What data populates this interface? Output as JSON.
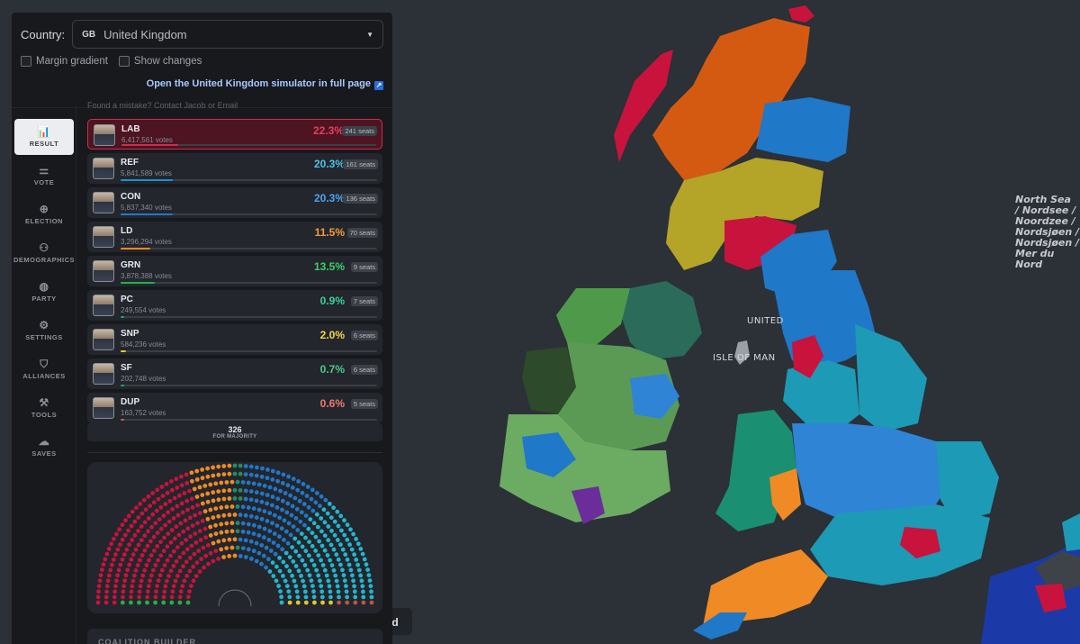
{
  "controls": {
    "country_label": "Country:",
    "country_code": "GB",
    "country_name": "United Kingdom",
    "margin_gradient": "Margin gradient",
    "show_changes": "Show changes",
    "fullpage_link": "Open the United Kingdom simulator in full page"
  },
  "nav": [
    {
      "label": "RESULT",
      "icon": "bar-chart-icon",
      "glyph": "📊",
      "active": true
    },
    {
      "label": "VOTE",
      "icon": "sliders-icon",
      "glyph": "⚌"
    },
    {
      "label": "ELECTION",
      "icon": "globe-icon",
      "glyph": "⊕"
    },
    {
      "label": "DEMOGRAPHICS",
      "icon": "people-icon",
      "glyph": "⚇"
    },
    {
      "label": "PARTY",
      "icon": "palette-icon",
      "glyph": "◍"
    },
    {
      "label": "SETTINGS",
      "icon": "gear-icon",
      "glyph": "⚙"
    },
    {
      "label": "ALLIANCES",
      "icon": "handshake-icon",
      "glyph": "⛉"
    },
    {
      "label": "TOOLS",
      "icon": "wrench-icon",
      "glyph": "⚒"
    },
    {
      "label": "SAVES",
      "icon": "cloud-icon",
      "glyph": "☁"
    }
  ],
  "parties": [
    {
      "abbr": "LAB",
      "votes": "6,417,561 votes",
      "pct": "22.3%",
      "seats": "241 seats",
      "color": "#e4405e",
      "bar": "#c9304a",
      "share": 0.223
    },
    {
      "abbr": "REF",
      "votes": "5,841,589 votes",
      "pct": "20.3%",
      "seats": "161 seats",
      "color": "#4cc3e3",
      "bar": "#1d8fd6",
      "share": 0.203
    },
    {
      "abbr": "CON",
      "votes": "5,837,340 votes",
      "pct": "20.3%",
      "seats": "136 seats",
      "color": "#4aa6ee",
      "bar": "#1f78d1",
      "share": 0.203
    },
    {
      "abbr": "LD",
      "votes": "3,296,294 votes",
      "pct": "11.5%",
      "seats": "70 seats",
      "color": "#f59a3c",
      "bar": "#f08a24",
      "share": 0.115
    },
    {
      "abbr": "GRN",
      "votes": "3,878,388 votes",
      "pct": "13.5%",
      "seats": "9 seats",
      "color": "#3ccf6e",
      "bar": "#22b14c",
      "share": 0.135
    },
    {
      "abbr": "PC",
      "votes": "249,554 votes",
      "pct": "0.9%",
      "seats": "7 seats",
      "color": "#3ccf9a",
      "bar": "#1aa37a",
      "share": 0.009
    },
    {
      "abbr": "SNP",
      "votes": "584,236 votes",
      "pct": "2.0%",
      "seats": "6 seats",
      "color": "#efd94a",
      "bar": "#e2c72d",
      "share": 0.02
    },
    {
      "abbr": "SF",
      "votes": "202,748 votes",
      "pct": "0.7%",
      "seats": "6 seats",
      "color": "#4ec98a",
      "bar": "#2aa36b",
      "share": 0.007
    },
    {
      "abbr": "DUP",
      "votes": "163,752 votes",
      "pct": "0.6%",
      "seats": "5 seats",
      "color": "#f07a6a",
      "bar": "#d45a4a",
      "share": 0.006
    }
  ],
  "majority": {
    "number": "326",
    "label": "FOR MAJORITY"
  },
  "coalition": "COALITION BUILDER",
  "map": {
    "sea_label": [
      "North Sea",
      "/ Nordsee /",
      "Noordzee /",
      "Nordsjøen /",
      "Nordsjøen /",
      "Mer du Nord"
    ],
    "place_uk": "UNITED",
    "place_iom": "ISLE OF MAN"
  },
  "floating_button": "ld",
  "faded_text": "Found a mistake? Contact Jacob or Email"
}
